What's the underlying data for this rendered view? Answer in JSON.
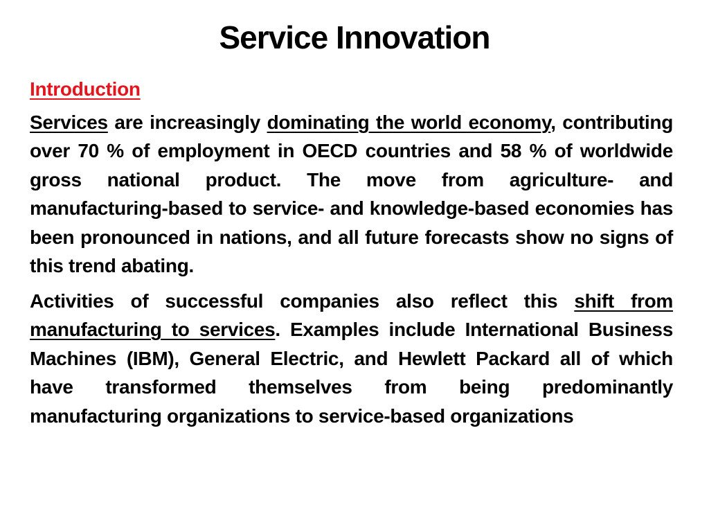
{
  "slide": {
    "title": "Service Innovation",
    "section_heading": "Introduction",
    "paragraph_1": {
      "lead": "Services",
      "part_a": " are increasingly ",
      "highlight": "dominating the world economy",
      "part_b": ", contributing over 70 % of employment in OECD countries and 58 % of worldwide gross national product. The move from agriculture- and manufacturing-based to service- and knowledge-based economies has been pronounced in nations, and all future forecasts show no signs of this trend abating."
    },
    "paragraph_2": {
      "part_a": "Activities of successful companies also reflect this ",
      "highlight": "shift from manufacturing to services",
      "part_b": ". Examples include International Business Machines (IBM), General Electric, and Hewlett Packard all of which have transformed themselves from being predominantly manufacturing organizations to service-based organizations"
    },
    "colors": {
      "heading_red": "#e3161d",
      "text": "#000000",
      "background": "#ffffff"
    }
  }
}
